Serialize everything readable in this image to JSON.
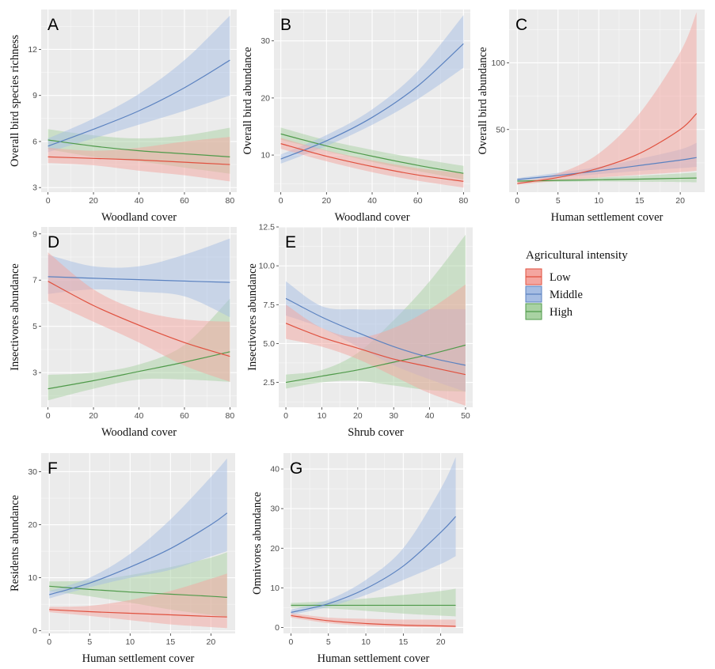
{
  "colors": {
    "Low": "#e0513f",
    "Middle": "#5b82c0",
    "High": "#4f9a4a",
    "band_Low": "#f4a6a0",
    "band_Middle": "#a6bde3",
    "band_High": "#a9d2a3",
    "panel_bg": "#ebebeb",
    "grid": "#ffffff"
  },
  "legend": {
    "title": "Agricultural intensity",
    "items": [
      "Low",
      "Middle",
      "High"
    ]
  },
  "chart_data": [
    {
      "letter": "A",
      "type": "line",
      "xlabel": "Woodland cover",
      "ylabel": "Overall bird species richness",
      "xlim": [
        -3,
        83
      ],
      "ylim": [
        2.7,
        14.6
      ],
      "xticks": [
        0,
        20,
        40,
        60,
        80
      ],
      "yticks": [
        3,
        6,
        9,
        12
      ],
      "series": [
        {
          "name": "Low",
          "x": [
            0,
            20,
            40,
            60,
            80
          ],
          "y": [
            5.0,
            4.9,
            4.8,
            4.65,
            4.5
          ],
          "lower": [
            4.6,
            4.45,
            4.1,
            3.8,
            3.4
          ],
          "upper": [
            5.6,
            5.4,
            5.6,
            6.0,
            6.3
          ]
        },
        {
          "name": "Middle",
          "x": [
            0,
            20,
            40,
            60,
            80
          ],
          "y": [
            5.7,
            6.8,
            8.0,
            9.5,
            11.3
          ],
          "lower": [
            5.3,
            6.2,
            7.1,
            8.0,
            9.0
          ],
          "upper": [
            6.2,
            7.5,
            9.1,
            11.3,
            14.2
          ]
        },
        {
          "name": "High",
          "x": [
            0,
            20,
            40,
            60,
            80
          ],
          "y": [
            6.1,
            5.7,
            5.4,
            5.2,
            5.0
          ],
          "lower": [
            5.5,
            5.0,
            4.7,
            4.3,
            3.9
          ],
          "upper": [
            6.8,
            6.4,
            6.2,
            6.4,
            6.9
          ]
        }
      ]
    },
    {
      "letter": "B",
      "type": "line",
      "xlabel": "Woodland cover",
      "ylabel": "Overall bird abundance",
      "xlim": [
        -3,
        83
      ],
      "ylim": [
        3.5,
        35.5
      ],
      "xticks": [
        0,
        20,
        40,
        60,
        80
      ],
      "yticks": [
        10,
        20,
        30
      ],
      "series": [
        {
          "name": "Low",
          "x": [
            0,
            20,
            40,
            60,
            80
          ],
          "y": [
            12.0,
            9.8,
            8.0,
            6.5,
            5.4
          ],
          "lower": [
            11.1,
            8.9,
            7.0,
            5.5,
            4.3
          ],
          "upper": [
            13.0,
            10.8,
            9.1,
            7.7,
            6.8
          ]
        },
        {
          "name": "Middle",
          "x": [
            0,
            20,
            40,
            60,
            80
          ],
          "y": [
            9.3,
            12.5,
            16.6,
            22.1,
            29.5
          ],
          "lower": [
            8.5,
            11.6,
            15.3,
            19.8,
            25.3
          ],
          "upper": [
            10.1,
            13.5,
            18.0,
            24.7,
            34.5
          ]
        },
        {
          "name": "High",
          "x": [
            0,
            20,
            40,
            60,
            80
          ],
          "y": [
            13.7,
            11.6,
            9.8,
            8.2,
            6.8
          ],
          "lower": [
            12.7,
            10.7,
            8.8,
            7.2,
            5.7
          ],
          "upper": [
            14.8,
            12.6,
            10.9,
            9.4,
            8.1
          ]
        }
      ]
    },
    {
      "letter": "C",
      "type": "line",
      "xlabel": "Human settlement cover",
      "ylabel": "Overall bird abundance",
      "xlim": [
        -1,
        23
      ],
      "ylim": [
        3,
        140
      ],
      "xticks": [
        0,
        5,
        10,
        15,
        20
      ],
      "yticks": [
        50,
        100
      ],
      "series": [
        {
          "name": "Low",
          "x": [
            0,
            5,
            10,
            15,
            20,
            22
          ],
          "y": [
            9.5,
            14,
            21,
            32,
            50,
            62
          ],
          "lower": [
            8.5,
            11.5,
            14,
            16,
            18,
            19
          ],
          "upper": [
            10.5,
            17,
            32,
            62,
            108,
            138
          ]
        },
        {
          "name": "Middle",
          "x": [
            0,
            5,
            10,
            15,
            20,
            22
          ],
          "y": [
            12.5,
            15.5,
            19,
            23,
            27,
            29
          ],
          "lower": [
            11.5,
            14,
            16.5,
            19,
            21,
            22
          ],
          "upper": [
            13.5,
            17.5,
            22,
            28,
            35,
            40
          ]
        },
        {
          "name": "High",
          "x": [
            0,
            5,
            10,
            15,
            20,
            22
          ],
          "y": [
            11.3,
            11.8,
            12.3,
            12.8,
            13.4,
            13.6
          ],
          "lower": [
            10.5,
            10.8,
            11,
            10.8,
            10.6,
            10.4
          ],
          "upper": [
            12.2,
            13,
            14,
            15.3,
            17,
            17.8
          ]
        }
      ]
    },
    {
      "letter": "D",
      "type": "line",
      "xlabel": "Woodland cover",
      "ylabel": "Insectivores abundance",
      "xlim": [
        -3,
        83
      ],
      "ylim": [
        1.5,
        9.3
      ],
      "xticks": [
        0,
        20,
        40,
        60,
        80
      ],
      "yticks": [
        3,
        5,
        7,
        9
      ],
      "series": [
        {
          "name": "Low",
          "x": [
            0,
            20,
            40,
            60,
            80
          ],
          "y": [
            6.95,
            5.9,
            5.05,
            4.3,
            3.7
          ],
          "lower": [
            6.1,
            5.2,
            4.3,
            3.3,
            2.6
          ],
          "upper": [
            8.2,
            6.6,
            5.7,
            5.3,
            5.2
          ]
        },
        {
          "name": "Middle",
          "x": [
            0,
            20,
            40,
            60,
            80
          ],
          "y": [
            7.15,
            7.08,
            7.02,
            6.96,
            6.9
          ],
          "lower": [
            6.4,
            6.6,
            6.5,
            6.3,
            5.4
          ],
          "upper": [
            8.1,
            7.6,
            7.6,
            8.1,
            8.8
          ]
        },
        {
          "name": "High",
          "x": [
            0,
            20,
            40,
            60,
            80
          ],
          "y": [
            2.3,
            2.65,
            3.05,
            3.45,
            3.9
          ],
          "lower": [
            1.8,
            2.3,
            2.7,
            2.7,
            2.6
          ],
          "upper": [
            2.9,
            3.0,
            3.35,
            4.2,
            6.2
          ]
        }
      ]
    },
    {
      "letter": "E",
      "type": "line",
      "xlabel": "Shrub cover",
      "ylabel": "Insectivores abundance",
      "xlim": [
        -2,
        52
      ],
      "ylim": [
        0.9,
        12.5
      ],
      "xticks": [
        0,
        10,
        20,
        30,
        40,
        50
      ],
      "yticks": [
        2.5,
        5.0,
        7.5,
        10.0,
        12.5
      ],
      "series": [
        {
          "name": "Low",
          "x": [
            0,
            10,
            20,
            30,
            40,
            50
          ],
          "y": [
            6.3,
            5.4,
            4.7,
            4.0,
            3.5,
            3.0
          ],
          "lower": [
            5.3,
            4.8,
            4.0,
            2.9,
            1.8,
            1.0
          ],
          "upper": [
            7.5,
            6.0,
            5.4,
            6.0,
            7.2,
            8.8
          ]
        },
        {
          "name": "Middle",
          "x": [
            0,
            10,
            20,
            30,
            40,
            50
          ],
          "y": [
            7.9,
            6.7,
            5.7,
            4.8,
            4.1,
            3.6
          ],
          "lower": [
            6.8,
            6.0,
            4.8,
            3.6,
            2.7,
            1.9
          ],
          "upper": [
            9.0,
            7.4,
            7.2,
            7.2,
            7.2,
            7.2
          ]
        },
        {
          "name": "High",
          "x": [
            0,
            10,
            20,
            30,
            40,
            50
          ],
          "y": [
            2.5,
            2.9,
            3.3,
            3.8,
            4.3,
            4.9
          ],
          "lower": [
            2.1,
            2.5,
            2.6,
            2.3,
            2.0,
            1.9
          ],
          "upper": [
            3.0,
            3.3,
            4.4,
            6.5,
            9.0,
            12.0
          ]
        }
      ]
    },
    {
      "letter": "F",
      "type": "line",
      "xlabel": "Human settlement cover",
      "ylabel": "Residents abundance",
      "xlim": [
        -1,
        23
      ],
      "ylim": [
        -0.5,
        33.5
      ],
      "xticks": [
        0,
        5,
        10,
        15,
        20
      ],
      "yticks": [
        0,
        10,
        20,
        30
      ],
      "series": [
        {
          "name": "Low",
          "x": [
            0,
            5,
            10,
            15,
            20,
            22
          ],
          "y": [
            4.0,
            3.6,
            3.3,
            3.0,
            2.7,
            2.6
          ],
          "lower": [
            3.5,
            2.8,
            2.0,
            1.2,
            0.7,
            0.5
          ],
          "upper": [
            4.5,
            4.7,
            5.8,
            7.5,
            9.8,
            10.8
          ]
        },
        {
          "name": "Middle",
          "x": [
            0,
            5,
            10,
            15,
            20,
            22
          ],
          "y": [
            6.8,
            9.0,
            12.0,
            15.5,
            20.0,
            22.2
          ],
          "lower": [
            6.1,
            8.2,
            10.0,
            11.5,
            14.0,
            15.0
          ],
          "upper": [
            7.5,
            10.0,
            14.5,
            21.0,
            29.0,
            32.5
          ]
        },
        {
          "name": "High",
          "x": [
            0,
            5,
            10,
            15,
            20,
            22
          ],
          "y": [
            8.4,
            7.8,
            7.3,
            6.9,
            6.5,
            6.3
          ],
          "lower": [
            7.5,
            6.5,
            5.3,
            4.0,
            3.0,
            2.7
          ],
          "upper": [
            9.3,
            9.5,
            10.5,
            12.0,
            13.8,
            14.8
          ]
        }
      ]
    },
    {
      "letter": "G",
      "type": "line",
      "xlabel": "Human settlement cover",
      "ylabel": "Omnivores abundance",
      "xlim": [
        -1,
        23
      ],
      "ylim": [
        -1.5,
        44
      ],
      "xticks": [
        0,
        5,
        10,
        15,
        20
      ],
      "yticks": [
        0,
        10,
        20,
        30,
        40
      ],
      "series": [
        {
          "name": "Low",
          "x": [
            0,
            5,
            10,
            15,
            20,
            22
          ],
          "y": [
            3.0,
            1.7,
            1.0,
            0.6,
            0.4,
            0.3
          ],
          "lower": [
            2.5,
            1.1,
            0.4,
            0.1,
            0.0,
            0.0
          ],
          "upper": [
            3.6,
            2.5,
            2.2,
            2.0,
            2.0,
            2.0
          ]
        },
        {
          "name": "Middle",
          "x": [
            0,
            5,
            10,
            15,
            20,
            22
          ],
          "y": [
            3.8,
            6.0,
            9.8,
            15.5,
            24.0,
            28.0
          ],
          "lower": [
            3.2,
            5.2,
            8.2,
            12.0,
            16.0,
            18.0
          ],
          "upper": [
            4.5,
            7.0,
            12.0,
            20.0,
            35.0,
            43.0
          ]
        },
        {
          "name": "High",
          "x": [
            0,
            5,
            10,
            15,
            20,
            22
          ],
          "y": [
            5.6,
            5.6,
            5.6,
            5.6,
            5.6,
            5.6
          ],
          "lower": [
            5.0,
            4.8,
            4.2,
            3.5,
            3.0,
            2.8
          ],
          "upper": [
            6.2,
            6.6,
            7.3,
            8.2,
            9.2,
            9.8
          ]
        }
      ]
    }
  ]
}
